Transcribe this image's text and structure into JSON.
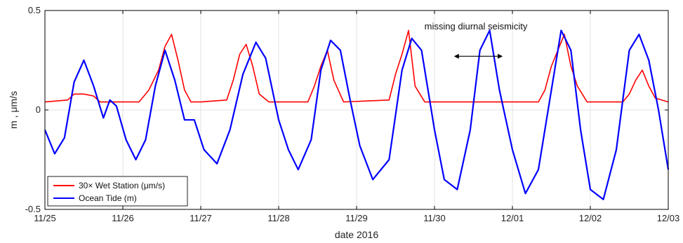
{
  "chart_data": {
    "type": "line",
    "xlabel": "date 2016",
    "ylabel": "m , μm/s",
    "xlim": [
      "2016-11-25",
      "2016-12-03"
    ],
    "ylim": [
      -0.5,
      0.5
    ],
    "x_ticks": [
      "11/25",
      "11/26",
      "11/27",
      "11/28",
      "11/29",
      "11/30",
      "12/01",
      "12/02",
      "12/03"
    ],
    "y_ticks": [
      {
        "value": -0.5,
        "label": "-0.5"
      },
      {
        "value": 0,
        "label": "0"
      },
      {
        "value": 0.5,
        "label": "0.5"
      }
    ],
    "grid": true,
    "legend_position": "bottom-left",
    "legend": [
      {
        "label": "30× Wet Station (μm/s)",
        "color": "#ff0000"
      },
      {
        "label": "Ocean Tide (m)",
        "color": "#0000ff"
      }
    ],
    "annotation": {
      "text": "missing diurnal seismicity",
      "arrow_from": "2016-11-30 06:00",
      "arrow_to": "2016-11-30 21:00",
      "arrow_y": 0.27
    },
    "series": [
      {
        "name": "Ocean Tide (m)",
        "color": "#0000ff",
        "x": [
          "2016-11-25 00:00",
          "2016-11-25 03:00",
          "2016-11-25 06:00",
          "2016-11-25 09:00",
          "2016-11-25 12:00",
          "2016-11-25 15:00",
          "2016-11-25 18:00",
          "2016-11-25 20:00",
          "2016-11-25 22:00",
          "2016-11-26 01:00",
          "2016-11-26 04:00",
          "2016-11-26 07:00",
          "2016-11-26 10:00",
          "2016-11-26 13:00",
          "2016-11-26 16:00",
          "2016-11-26 19:00",
          "2016-11-26 22:00",
          "2016-11-27 01:00",
          "2016-11-27 05:00",
          "2016-11-27 09:00",
          "2016-11-27 13:00",
          "2016-11-27 17:00",
          "2016-11-27 20:00",
          "2016-11-28 00:00",
          "2016-11-28 03:00",
          "2016-11-28 06:00",
          "2016-11-28 10:00",
          "2016-11-28 13:00",
          "2016-11-28 16:00",
          "2016-11-28 19:00",
          "2016-11-28 22:00",
          "2016-11-29 01:00",
          "2016-11-29 05:00",
          "2016-11-29 10:00",
          "2016-11-29 14:00",
          "2016-11-29 17:00",
          "2016-11-29 20:00",
          "2016-11-30 00:00",
          "2016-11-30 03:00",
          "2016-11-30 07:00",
          "2016-11-30 11:00",
          "2016-11-30 14:00",
          "2016-11-30 17:00",
          "2016-11-30 20:00",
          "2016-12-01 00:00",
          "2016-12-01 04:00",
          "2016-12-01 08:00",
          "2016-12-01 12:00",
          "2016-12-01 15:00",
          "2016-12-01 18:00",
          "2016-12-01 21:00",
          "2016-12-02 00:00",
          "2016-12-02 04:00",
          "2016-12-02 08:00",
          "2016-12-02 12:00",
          "2016-12-02 15:00",
          "2016-12-02 18:00",
          "2016-12-02 21:00",
          "2016-12-03 00:00"
        ],
        "y": [
          -0.1,
          -0.22,
          -0.14,
          0.14,
          0.25,
          0.12,
          -0.04,
          0.05,
          0.02,
          -0.15,
          -0.25,
          -0.15,
          0.12,
          0.3,
          0.15,
          -0.05,
          -0.05,
          -0.2,
          -0.27,
          -0.1,
          0.18,
          0.34,
          0.26,
          -0.05,
          -0.2,
          -0.3,
          -0.15,
          0.2,
          0.35,
          0.3,
          0.05,
          -0.18,
          -0.35,
          -0.25,
          0.2,
          0.36,
          0.3,
          -0.1,
          -0.35,
          -0.4,
          -0.1,
          0.3,
          0.4,
          0.1,
          -0.2,
          -0.42,
          -0.3,
          0.1,
          0.4,
          0.3,
          -0.1,
          -0.4,
          -0.45,
          -0.2,
          0.3,
          0.38,
          0.25,
          0.0,
          -0.3
        ]
      },
      {
        "name": "30× Wet Station (μm/s)",
        "color": "#ff0000",
        "x": [
          "2016-11-25 00:00",
          "2016-11-25 07:00",
          "2016-11-25 09:00",
          "2016-11-25 12:00",
          "2016-11-25 15:00",
          "2016-11-25 17:00",
          "2016-11-26 05:00",
          "2016-11-26 08:00",
          "2016-11-26 11:00",
          "2016-11-26 13:00",
          "2016-11-26 15:00",
          "2016-11-26 17:00",
          "2016-11-26 19:00",
          "2016-11-26 21:00",
          "2016-11-27 00:00",
          "2016-11-27 08:00",
          "2016-11-27 10:00",
          "2016-11-27 12:00",
          "2016-11-27 14:00",
          "2016-11-27 16:00",
          "2016-11-27 18:00",
          "2016-11-27 21:00",
          "2016-11-28 09:00",
          "2016-11-28 11:00",
          "2016-11-28 13:00",
          "2016-11-28 15:00",
          "2016-11-28 17:00",
          "2016-11-28 20:00",
          "2016-11-29 10:00",
          "2016-11-29 12:00",
          "2016-11-29 14:00",
          "2016-11-29 16:00",
          "2016-11-29 18:00",
          "2016-11-29 21:00",
          "2016-12-01 08:00",
          "2016-12-01 10:00",
          "2016-12-01 12:00",
          "2016-12-01 14:00",
          "2016-12-01 16:00",
          "2016-12-01 18:00",
          "2016-12-01 20:00",
          "2016-12-01 23:00",
          "2016-12-02 10:00",
          "2016-12-02 12:00",
          "2016-12-02 14:00",
          "2016-12-02 16:00",
          "2016-12-02 18:00",
          "2016-12-02 20:00",
          "2016-12-03 00:00"
        ],
        "y": [
          0.04,
          0.05,
          0.08,
          0.08,
          0.07,
          0.04,
          0.04,
          0.1,
          0.2,
          0.32,
          0.38,
          0.25,
          0.1,
          0.04,
          0.04,
          0.05,
          0.15,
          0.28,
          0.33,
          0.22,
          0.08,
          0.04,
          0.04,
          0.12,
          0.22,
          0.3,
          0.15,
          0.04,
          0.05,
          0.18,
          0.28,
          0.4,
          0.12,
          0.04,
          0.04,
          0.1,
          0.22,
          0.3,
          0.38,
          0.22,
          0.12,
          0.04,
          0.04,
          0.08,
          0.15,
          0.2,
          0.12,
          0.06,
          0.04
        ]
      }
    ]
  }
}
